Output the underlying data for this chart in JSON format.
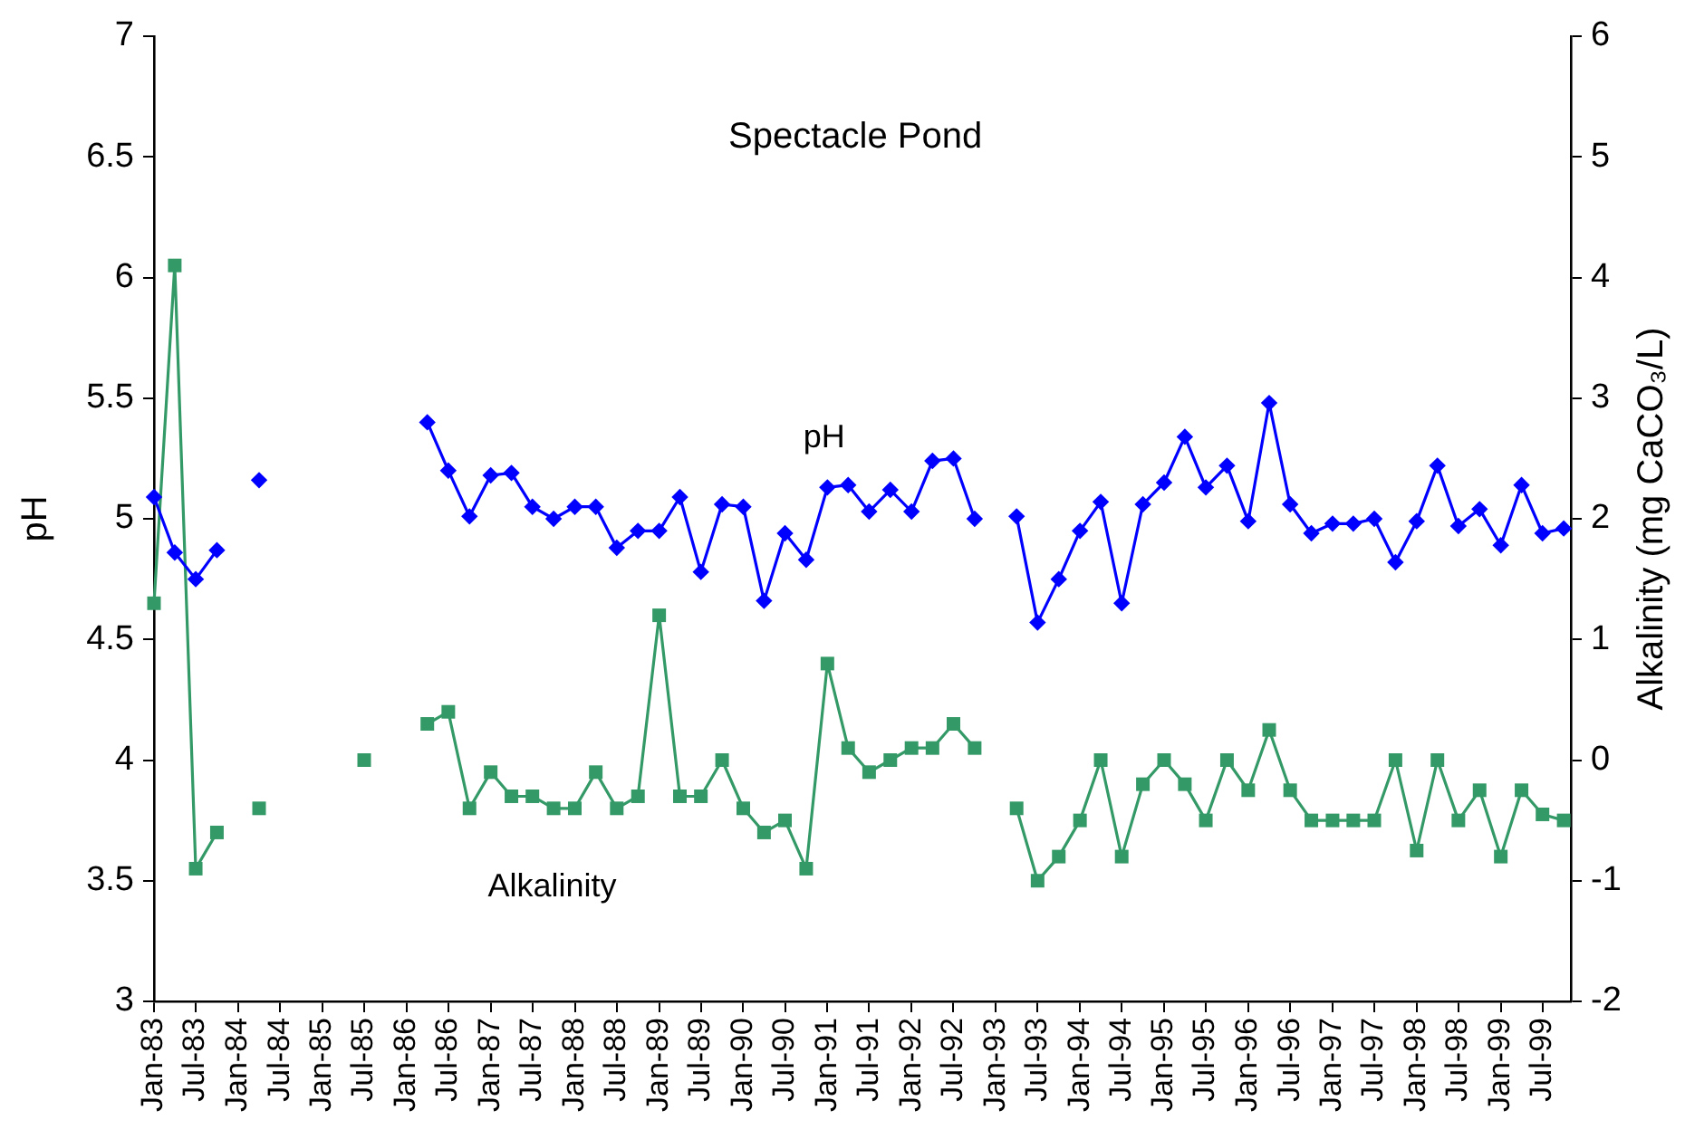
{
  "chart_data": {
    "type": "line",
    "title": "Spectacle Pond",
    "ylabel": "pH",
    "y2label": "Alkalinity (mg CaCO₃/L)",
    "x": [
      "1983-01",
      "1983-04",
      "1983-07",
      "1983-10",
      "1984-01",
      "1984-04",
      "1984-07",
      "1984-10",
      "1985-01",
      "1985-04",
      "1985-07",
      "1985-10",
      "1986-01",
      "1986-04",
      "1986-07",
      "1986-10",
      "1987-01",
      "1987-04",
      "1987-07",
      "1987-10",
      "1988-01",
      "1988-04",
      "1988-07",
      "1988-10",
      "1989-01",
      "1989-04",
      "1989-07",
      "1989-10",
      "1990-01",
      "1990-04",
      "1990-07",
      "1990-10",
      "1991-01",
      "1991-04",
      "1991-07",
      "1991-10",
      "1992-01",
      "1992-04",
      "1992-07",
      "1992-10",
      "1993-01",
      "1993-04",
      "1993-07",
      "1993-10",
      "1994-01",
      "1994-04",
      "1994-07",
      "1994-10",
      "1995-01",
      "1995-04",
      "1995-07",
      "1995-10",
      "1996-01",
      "1996-04",
      "1996-07",
      "1996-10",
      "1997-01",
      "1997-04",
      "1997-07",
      "1997-10",
      "1998-01",
      "1998-04",
      "1998-07",
      "1998-10",
      "1999-01",
      "1999-04",
      "1999-07",
      "1999-10"
    ],
    "xlim": [
      "1983-01",
      "1999-11"
    ],
    "xticks": [
      {
        "value": "1983-01",
        "label": "Jan-83"
      },
      {
        "value": "1983-07",
        "label": "Jul-83"
      },
      {
        "value": "1984-01",
        "label": "Jan-84"
      },
      {
        "value": "1984-07",
        "label": "Jul-84"
      },
      {
        "value": "1985-01",
        "label": "Jan-85"
      },
      {
        "value": "1985-07",
        "label": "Jul-85"
      },
      {
        "value": "1986-01",
        "label": "Jan-86"
      },
      {
        "value": "1986-07",
        "label": "Jul-86"
      },
      {
        "value": "1987-01",
        "label": "Jan-87"
      },
      {
        "value": "1987-07",
        "label": "Jul-87"
      },
      {
        "value": "1988-01",
        "label": "Jan-88"
      },
      {
        "value": "1988-07",
        "label": "Jul-88"
      },
      {
        "value": "1989-01",
        "label": "Jan-89"
      },
      {
        "value": "1989-07",
        "label": "Jul-89"
      },
      {
        "value": "1990-01",
        "label": "Jan-90"
      },
      {
        "value": "1990-07",
        "label": "Jul-90"
      },
      {
        "value": "1991-01",
        "label": "Jan-91"
      },
      {
        "value": "1991-07",
        "label": "Jul-91"
      },
      {
        "value": "1992-01",
        "label": "Jan-92"
      },
      {
        "value": "1992-07",
        "label": "Jul-92"
      },
      {
        "value": "1993-01",
        "label": "Jan-93"
      },
      {
        "value": "1993-07",
        "label": "Jul-93"
      },
      {
        "value": "1994-01",
        "label": "Jan-94"
      },
      {
        "value": "1994-07",
        "label": "Jul-94"
      },
      {
        "value": "1995-01",
        "label": "Jan-95"
      },
      {
        "value": "1995-07",
        "label": "Jul-95"
      },
      {
        "value": "1996-01",
        "label": "Jan-96"
      },
      {
        "value": "1996-07",
        "label": "Jul-96"
      },
      {
        "value": "1997-01",
        "label": "Jan-97"
      },
      {
        "value": "1997-07",
        "label": "Jul-97"
      },
      {
        "value": "1998-01",
        "label": "Jan-98"
      },
      {
        "value": "1998-07",
        "label": "Jul-98"
      },
      {
        "value": "1999-01",
        "label": "Jan-99"
      },
      {
        "value": "1999-07",
        "label": "Jul-99"
      }
    ],
    "ylim": [
      3,
      7
    ],
    "yticks": [
      3,
      3.5,
      4,
      4.5,
      5,
      5.5,
      6,
      6.5,
      7
    ],
    "y2lim": [
      -2,
      6
    ],
    "y2ticks": [
      -2,
      -1,
      0,
      1,
      2,
      3,
      4,
      5,
      6
    ],
    "grid": false,
    "legend": false,
    "series": [
      {
        "name": "pH",
        "color": "#0000ff",
        "marker": "diamond",
        "values": [
          5.09,
          4.86,
          4.75,
          4.87,
          null,
          5.16,
          null,
          null,
          null,
          null,
          null,
          null,
          null,
          5.4,
          5.2,
          5.01,
          5.18,
          5.19,
          5.05,
          5,
          5.05,
          5.05,
          4.88,
          4.95,
          4.95,
          5.09,
          4.78,
          5.06,
          5.05,
          4.66,
          4.94,
          4.83,
          5.13,
          5.14,
          5.03,
          5.12,
          5.03,
          5.24,
          5.25,
          5,
          null,
          5.01,
          4.57,
          4.75,
          4.95,
          5.07,
          4.65,
          5.06,
          5.15,
          5.34,
          5.13,
          5.22,
          4.99,
          5.48,
          5.06,
          4.94,
          4.98,
          4.98,
          5,
          4.82,
          4.99,
          5.22,
          4.97,
          5.04,
          4.89,
          5.14,
          4.94,
          4.96
        ]
      },
      {
        "name": "Alkalinity",
        "color": "#339966",
        "marker": "square",
        "axis": "y2",
        "values": [
          1.3,
          4.1,
          -0.9,
          -0.6,
          null,
          -0.4,
          null,
          null,
          null,
          null,
          0,
          null,
          null,
          0.3,
          0.4,
          -0.4,
          -0.1,
          -0.3,
          -0.3,
          -0.4,
          -0.4,
          -0.1,
          -0.4,
          -0.3,
          1.2,
          -0.3,
          -0.3,
          0,
          -0.4,
          -0.6,
          -0.5,
          -0.9,
          0.8,
          0.1,
          -0.1,
          0,
          0.1,
          0.1,
          0.3,
          0.1,
          null,
          -0.4,
          -1,
          -0.8,
          -0.5,
          0,
          -0.8,
          -0.2,
          0,
          -0.2,
          -0.5,
          0,
          -0.25,
          0.25,
          -0.25,
          -0.5,
          -0.5,
          -0.5,
          -0.5,
          0,
          -0.75,
          0,
          -0.5,
          -0.25,
          -0.8,
          -0.25,
          -0.45,
          -0.5
        ]
      }
    ]
  }
}
